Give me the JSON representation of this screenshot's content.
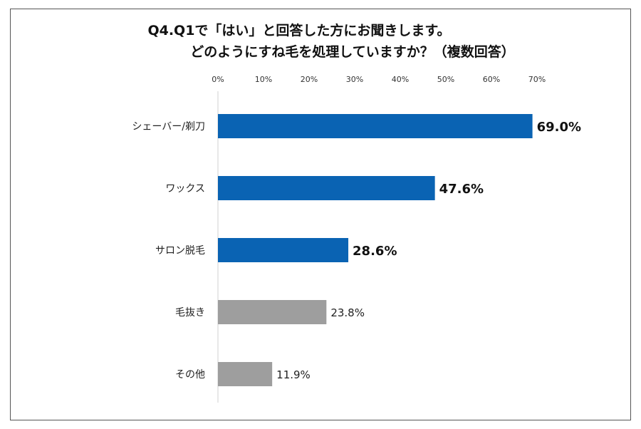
{
  "title": {
    "line1": "Q4.Q1で「はい」と回答した方にお聞きします。",
    "line2": "どのようにすね毛を処理していますか？（複数回答）"
  },
  "colors": {
    "highlight": "#0a63b3",
    "other": "#9e9e9e"
  },
  "chart_data": {
    "type": "bar",
    "orientation": "horizontal",
    "categories": [
      "シェーバー/剃刀",
      "ワックス",
      "サロン脱毛",
      "毛抜き",
      "その他"
    ],
    "values": [
      69.0,
      47.6,
      28.6,
      23.8,
      11.9
    ],
    "value_labels": [
      "69.0%",
      "47.6%",
      "28.6%",
      "23.8%",
      "11.9%"
    ],
    "highlighted": [
      true,
      true,
      true,
      false,
      false
    ],
    "xticks": [
      0,
      10,
      20,
      30,
      40,
      50,
      60,
      70
    ],
    "xtick_labels": [
      "0%",
      "10%",
      "20%",
      "30%",
      "40%",
      "50%",
      "60%",
      "70%"
    ],
    "xlim": [
      0,
      70
    ],
    "axis_position": "top",
    "grid": false,
    "legend": "none"
  }
}
